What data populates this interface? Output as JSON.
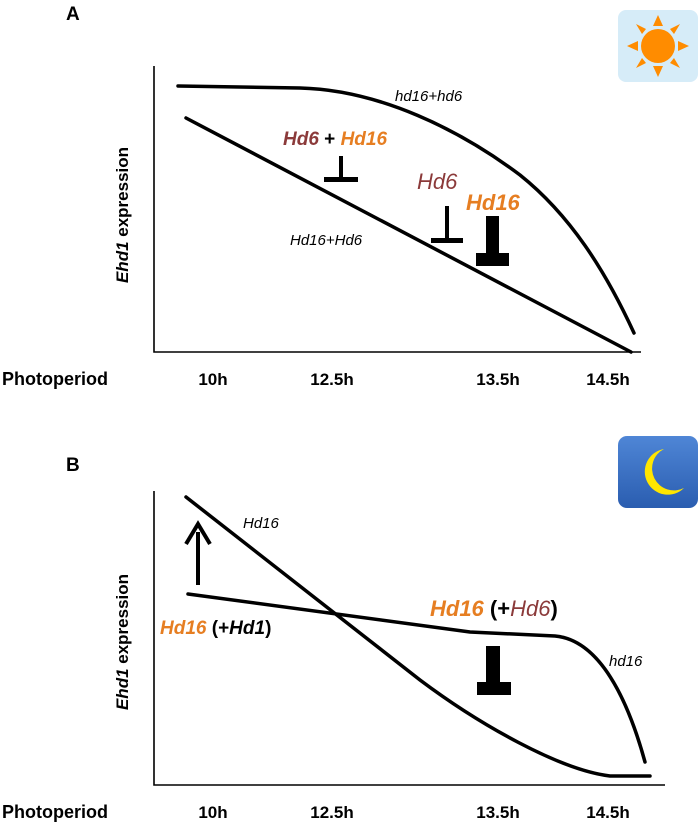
{
  "panelA": {
    "letter": "A",
    "ylabel_gene": "Ehd1",
    "ylabel_rest": " expression",
    "xlabel": "Photoperiod",
    "ticks": [
      "10h",
      "12.5h",
      "13.5h",
      "14.5h"
    ],
    "icon": "sun-icon",
    "curve_upper_label": "hd16+hd6",
    "curve_lower_label": "Hd16+Hd6",
    "combo_gene1": "Hd6",
    "combo_plus": " + ",
    "combo_gene2": "Hd16",
    "hd6_label": "Hd6",
    "hd16_label": "Hd16"
  },
  "panelB": {
    "letter": "B",
    "ylabel_gene": "Ehd1",
    "ylabel_rest": " expression",
    "xlabel": "Photoperiod",
    "ticks": [
      "10h",
      "12.5h",
      "13.5h",
      "14.5h"
    ],
    "icon": "moon-icon",
    "curve_top_label": "Hd16",
    "curve_right_label": "hd16",
    "left_gene": "Hd16",
    "left_open": " (+",
    "left_mod": "Hd1",
    "left_close": ")",
    "right_gene": "Hd16",
    "right_open": " (+",
    "right_mod": "Hd6",
    "right_close": ")"
  },
  "colors": {
    "hd6": "#8b3a3a",
    "hd16": "#e67e22",
    "sun_core": "#ff8c00",
    "sun_bg": "#d6ecf8",
    "night_top": "#4f86d6",
    "night_bottom": "#2a5db0",
    "moon": "#ffe600"
  }
}
